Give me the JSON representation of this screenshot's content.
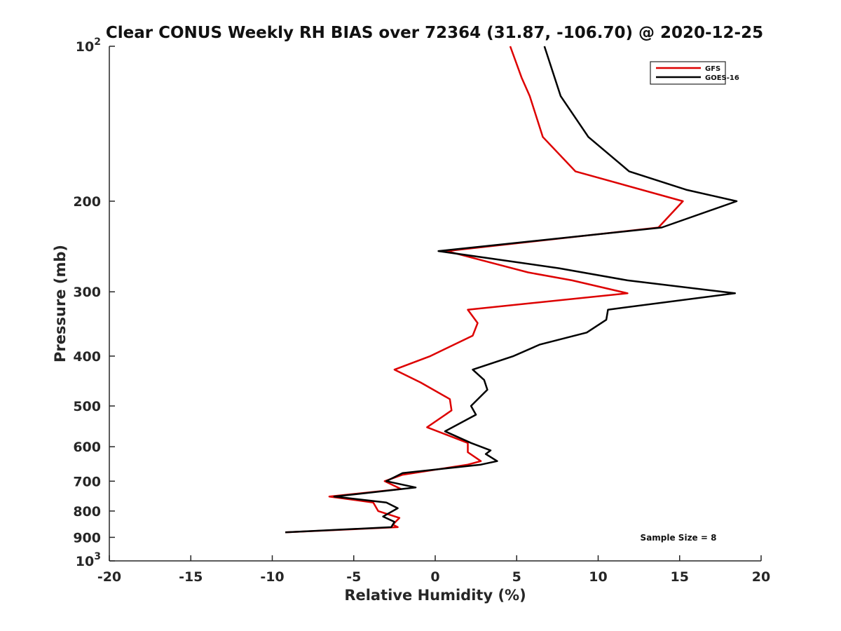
{
  "chart_data": {
    "type": "line",
    "title": "Clear CONUS Weekly RH BIAS over 72364 (31.87, -106.70) @ 2020-12-25",
    "xlabel": "Relative Humidity (%)",
    "ylabel": "Pressure (mb)",
    "xlim": [
      -20,
      20
    ],
    "ylim": [
      100,
      1000
    ],
    "y_scale": "log",
    "y_reversed": true,
    "grid": false,
    "legend_position": "top-right",
    "x_ticks": [
      "-20",
      "-15",
      "-10",
      "-5",
      "0",
      "5",
      "10",
      "15",
      "20"
    ],
    "y_ticks": [
      {
        "value": 100,
        "base": "10",
        "exp": "2"
      },
      {
        "value": 200,
        "label": "200"
      },
      {
        "value": 300,
        "label": "300"
      },
      {
        "value": 400,
        "label": "400"
      },
      {
        "value": 500,
        "label": "500"
      },
      {
        "value": 600,
        "label": "600"
      },
      {
        "value": 700,
        "label": "700"
      },
      {
        "value": 800,
        "label": "800"
      },
      {
        "value": 900,
        "label": "900"
      },
      {
        "value": 1000,
        "base": "10",
        "exp": "3"
      }
    ],
    "annotation": "Sample Size = 8",
    "series": [
      {
        "name": "GFS",
        "color": "#dd0000",
        "points": [
          [
            4.6,
            100
          ],
          [
            5.3,
            115
          ],
          [
            5.8,
            125
          ],
          [
            6.6,
            150
          ],
          [
            8.6,
            175
          ],
          [
            15.2,
            200
          ],
          [
            13.7,
            225
          ],
          [
            0.7,
            250
          ],
          [
            5.7,
            275
          ],
          [
            8.4,
            285
          ],
          [
            11.8,
            302
          ],
          [
            2.0,
            325
          ],
          [
            2.6,
            345
          ],
          [
            2.3,
            365
          ],
          [
            -0.3,
            400
          ],
          [
            -2.5,
            425
          ],
          [
            -0.9,
            450
          ],
          [
            0.9,
            485
          ],
          [
            1.0,
            510
          ],
          [
            -0.5,
            550
          ],
          [
            2.0,
            590
          ],
          [
            2.0,
            615
          ],
          [
            2.8,
            640
          ],
          [
            2.0,
            650
          ],
          [
            -2.0,
            680
          ],
          [
            -3.1,
            700
          ],
          [
            -2.1,
            725
          ],
          [
            -6.5,
            750
          ],
          [
            -3.8,
            770
          ],
          [
            -3.5,
            800
          ],
          [
            -2.2,
            825
          ],
          [
            -2.6,
            850
          ],
          [
            -2.3,
            860
          ],
          [
            -9.2,
            880
          ]
        ]
      },
      {
        "name": "GOES-16",
        "color": "#000000",
        "points": [
          [
            6.7,
            100
          ],
          [
            7.7,
            125
          ],
          [
            9.4,
            150
          ],
          [
            11.9,
            175
          ],
          [
            15.4,
            190
          ],
          [
            18.5,
            200
          ],
          [
            13.9,
            225
          ],
          [
            0.2,
            250
          ],
          [
            7.6,
            270
          ],
          [
            11.8,
            285
          ],
          [
            18.4,
            302
          ],
          [
            10.6,
            325
          ],
          [
            10.5,
            340
          ],
          [
            9.3,
            360
          ],
          [
            6.4,
            380
          ],
          [
            4.8,
            400
          ],
          [
            2.3,
            425
          ],
          [
            3.0,
            445
          ],
          [
            3.2,
            465
          ],
          [
            2.2,
            500
          ],
          [
            2.5,
            520
          ],
          [
            0.6,
            560
          ],
          [
            2.2,
            590
          ],
          [
            3.4,
            610
          ],
          [
            3.1,
            620
          ],
          [
            3.8,
            640
          ],
          [
            2.8,
            650
          ],
          [
            -2.0,
            675
          ],
          [
            -3.0,
            700
          ],
          [
            -1.2,
            720
          ],
          [
            -6.2,
            750
          ],
          [
            -3.0,
            770
          ],
          [
            -2.3,
            790
          ],
          [
            -3.2,
            820
          ],
          [
            -2.5,
            840
          ],
          [
            -2.7,
            860
          ],
          [
            -9.2,
            880
          ]
        ]
      }
    ]
  }
}
